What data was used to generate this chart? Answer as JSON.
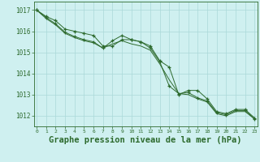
{
  "x": [
    0,
    1,
    2,
    3,
    4,
    5,
    6,
    7,
    8,
    9,
    10,
    11,
    12,
    13,
    14,
    15,
    16,
    17,
    18,
    19,
    20,
    21,
    22,
    23
  ],
  "series1": [
    1017.0,
    1016.7,
    1016.5,
    1016.1,
    1016.0,
    1015.9,
    1015.8,
    1015.3,
    1015.3,
    1015.6,
    1015.6,
    1015.5,
    1015.3,
    1014.6,
    1014.3,
    1013.0,
    1013.2,
    1013.2,
    1012.8,
    1012.2,
    1012.1,
    1012.3,
    1012.3,
    1011.9
  ],
  "series2": [
    1017.0,
    1016.65,
    1016.35,
    1015.95,
    1015.75,
    1015.6,
    1015.5,
    1015.2,
    1015.55,
    1015.8,
    1015.6,
    1015.5,
    1015.2,
    1014.55,
    1013.4,
    1013.05,
    1013.1,
    1012.85,
    1012.7,
    1012.15,
    1012.05,
    1012.25,
    1012.25,
    1011.85
  ],
  "series3": [
    1017.0,
    1016.6,
    1016.3,
    1015.9,
    1015.7,
    1015.55,
    1015.45,
    1015.2,
    1015.4,
    1015.55,
    1015.4,
    1015.3,
    1015.1,
    1014.45,
    1013.7,
    1013.05,
    1013.0,
    1012.8,
    1012.65,
    1012.1,
    1012.0,
    1012.2,
    1012.2,
    1011.85
  ],
  "line_color": "#2d6a2d",
  "bg_color": "#cff0f0",
  "grid_color": "#aad8d8",
  "xlabel": "Graphe pression niveau de la mer (hPa)",
  "xlabel_fontsize": 7.5,
  "ylim": [
    1011.5,
    1017.4
  ],
  "xlim": [
    -0.3,
    23.3
  ]
}
